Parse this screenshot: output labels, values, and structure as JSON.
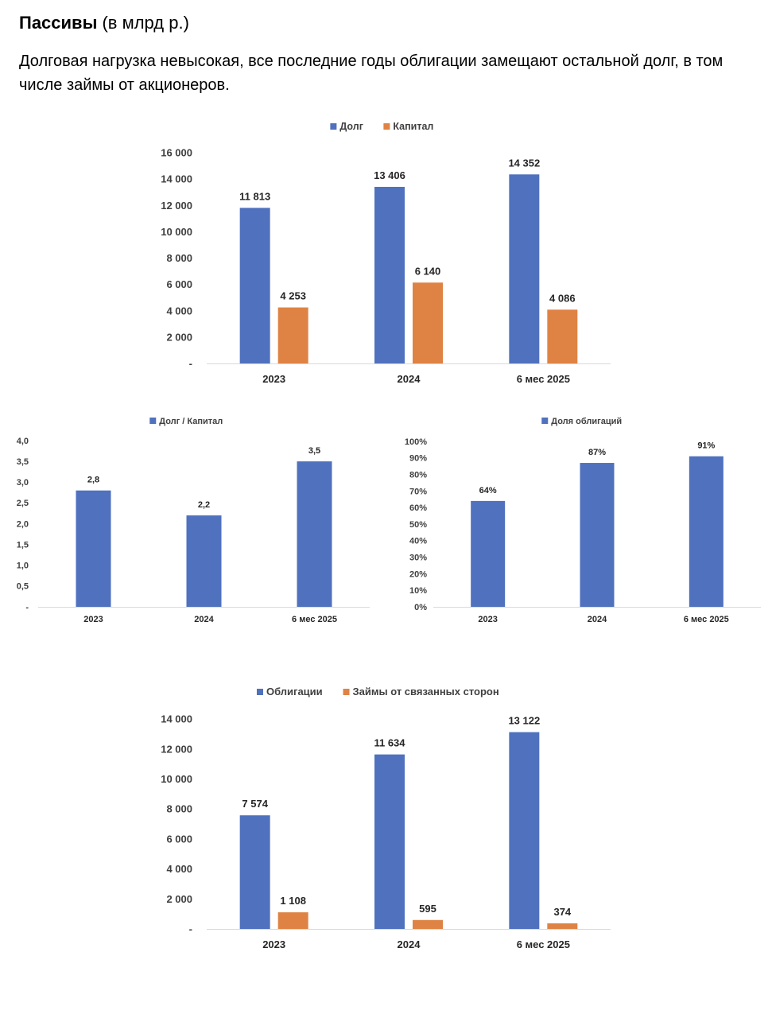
{
  "header": {
    "title_bold": "Пассивы",
    "title_rest": " (в млрд р.)",
    "lead": "Долговая нагрузка невысокая, все последние годы облигации замещают остальной долг, в том числе займы от акционеров."
  },
  "colors": {
    "blue": "#4f71be",
    "orange": "#df8344",
    "axis": "#d9d9d9"
  },
  "chart_data": [
    {
      "type": "bar",
      "categories": [
        "2023",
        "2024",
        "6 мес 2025"
      ],
      "series": [
        {
          "name": "Долг",
          "values": [
            11813,
            13406,
            14352
          ],
          "labels": [
            "11 813",
            "13 406",
            "14 352"
          ]
        },
        {
          "name": "Капитал",
          "values": [
            4253,
            6140,
            4086
          ],
          "labels": [
            "4 253",
            "6 140",
            "4 086"
          ]
        }
      ],
      "ylim": [
        0,
        16000
      ],
      "yticks": [
        {
          "v": 0,
          "t": "-"
        },
        {
          "v": 2000,
          "t": "2 000"
        },
        {
          "v": 4000,
          "t": "4 000"
        },
        {
          "v": 6000,
          "t": "6 000"
        },
        {
          "v": 8000,
          "t": "8 000"
        },
        {
          "v": 10000,
          "t": "10 000"
        },
        {
          "v": 12000,
          "t": "12 000"
        },
        {
          "v": 14000,
          "t": "14 000"
        },
        {
          "v": 16000,
          "t": "16 000"
        }
      ],
      "legend": "top",
      "grid": false
    },
    {
      "type": "bar",
      "categories": [
        "2023",
        "2024",
        "6 мес 2025"
      ],
      "series": [
        {
          "name": "Долг / Капитал",
          "values": [
            2.8,
            2.2,
            3.5
          ],
          "labels": [
            "2,8",
            "2,2",
            "3,5"
          ]
        }
      ],
      "ylim": [
        0,
        4
      ],
      "yticks": [
        {
          "v": 0,
          "t": "-"
        },
        {
          "v": 0.5,
          "t": "0,5"
        },
        {
          "v": 1,
          "t": "1,0"
        },
        {
          "v": 1.5,
          "t": "1,5"
        },
        {
          "v": 2,
          "t": "2,0"
        },
        {
          "v": 2.5,
          "t": "2,5"
        },
        {
          "v": 3,
          "t": "3,0"
        },
        {
          "v": 3.5,
          "t": "3,5"
        },
        {
          "v": 4,
          "t": "4,0"
        }
      ],
      "legend": "top",
      "grid": false
    },
    {
      "type": "bar",
      "categories": [
        "2023",
        "2024",
        "6 мес 2025"
      ],
      "series": [
        {
          "name": "Доля облигаций",
          "values": [
            64,
            87,
            91
          ],
          "labels": [
            "64%",
            "87%",
            "91%"
          ]
        }
      ],
      "ylim": [
        0,
        100
      ],
      "yticks": [
        {
          "v": 0,
          "t": "0%"
        },
        {
          "v": 10,
          "t": "10%"
        },
        {
          "v": 20,
          "t": "20%"
        },
        {
          "v": 30,
          "t": "30%"
        },
        {
          "v": 40,
          "t": "40%"
        },
        {
          "v": 50,
          "t": "50%"
        },
        {
          "v": 60,
          "t": "60%"
        },
        {
          "v": 70,
          "t": "70%"
        },
        {
          "v": 80,
          "t": "80%"
        },
        {
          "v": 90,
          "t": "90%"
        },
        {
          "v": 100,
          "t": "100%"
        }
      ],
      "legend": "top",
      "grid": false
    },
    {
      "type": "bar",
      "categories": [
        "2023",
        "2024",
        "6 мес 2025"
      ],
      "series": [
        {
          "name": "Облигации",
          "values": [
            7574,
            11634,
            13122
          ],
          "labels": [
            "7 574",
            "11 634",
            "13 122"
          ]
        },
        {
          "name": "Займы от связанных сторон",
          "values": [
            1108,
            595,
            374
          ],
          "labels": [
            "1 108",
            "595",
            "374"
          ]
        }
      ],
      "ylim": [
        0,
        14000
      ],
      "yticks": [
        {
          "v": 0,
          "t": "-"
        },
        {
          "v": 2000,
          "t": "2 000"
        },
        {
          "v": 4000,
          "t": "4 000"
        },
        {
          "v": 6000,
          "t": "6 000"
        },
        {
          "v": 8000,
          "t": "8 000"
        },
        {
          "v": 10000,
          "t": "10 000"
        },
        {
          "v": 12000,
          "t": "12 000"
        },
        {
          "v": 14000,
          "t": "14 000"
        }
      ],
      "legend": "top",
      "grid": false
    }
  ]
}
